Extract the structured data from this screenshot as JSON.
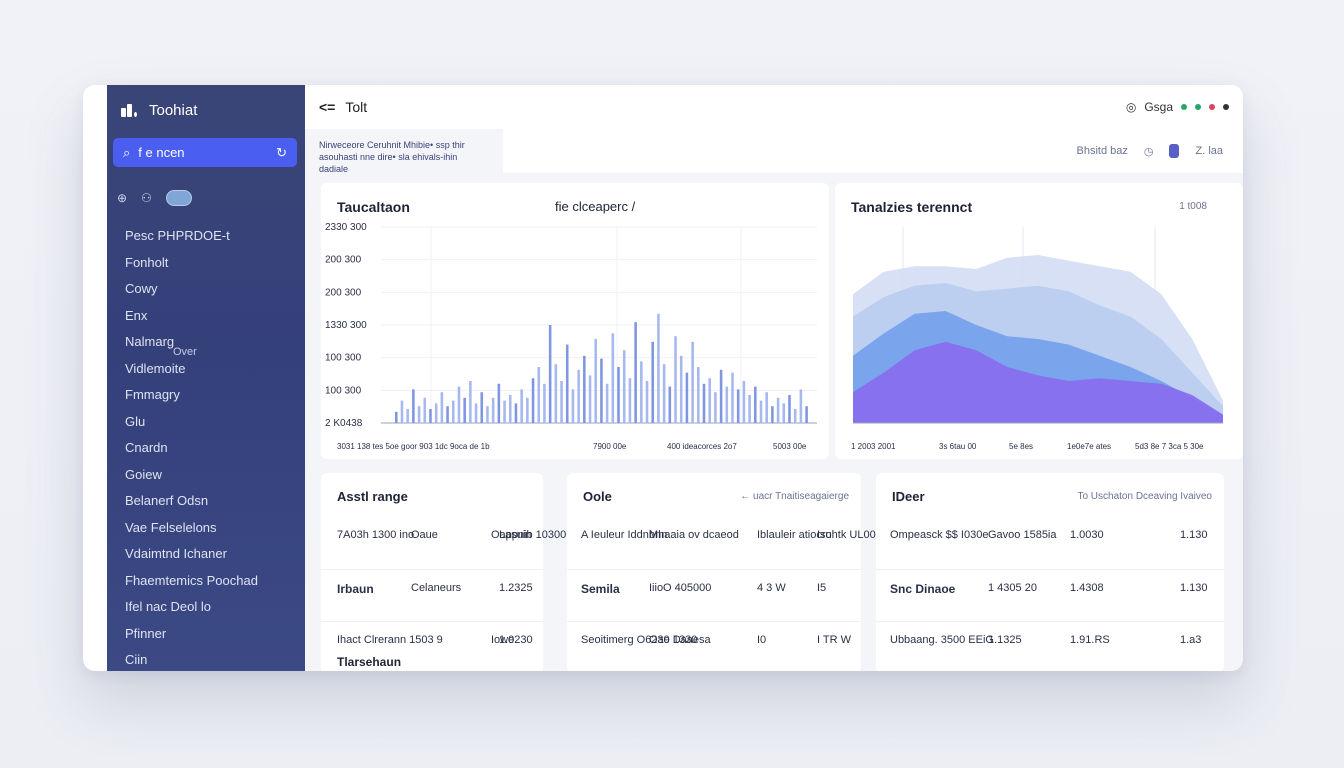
{
  "app": {
    "brand": "Toohiat",
    "search_label": "f e ncen",
    "side_icons": [
      "⊕",
      "⚇"
    ],
    "nav_items": [
      {
        "label": "Pesc PHPRDOE-t",
        "sub": ""
      },
      {
        "label": "Fonholt",
        "sub": ""
      },
      {
        "label": "Cowy",
        "sub": ""
      },
      {
        "label": "Enx",
        "sub": ""
      },
      {
        "label": "Nalmarg",
        "sub": "Over"
      },
      {
        "label": "Vidlemoite",
        "sub": ""
      },
      {
        "label": "Fmmagry",
        "sub": ""
      },
      {
        "label": "Glu",
        "sub": ""
      },
      {
        "label": "Cnardn",
        "sub": ""
      },
      {
        "label": "Goiew",
        "sub": ""
      },
      {
        "label": "Belanerf Odsn",
        "sub": ""
      },
      {
        "label": "Vae Felselelons",
        "sub": ""
      },
      {
        "label": "Vdaimtnd Ichaner",
        "sub": ""
      },
      {
        "label": "Fhaemtemics Poochad",
        "sub": ""
      },
      {
        "label": "Ifel nac Deol lo",
        "sub": ""
      },
      {
        "label": "Pfinner",
        "sub": ""
      },
      {
        "label": "Ciin",
        "sub": ""
      }
    ]
  },
  "topbar": {
    "back": "<=",
    "title": "Tolt",
    "right_label": "Gsga"
  },
  "subbar": {
    "breadcrumb": "Nirweceore Ceruhnit Mhibie• ssp thir asouhasti nne dire• sla ehivals-ihin dadiale",
    "panel_label": "Bhsitd baz",
    "panel_value": "Z. laa"
  },
  "colors": {
    "accent": "#4a5ff0",
    "sidebar": "#37427a",
    "bars": "#8fa6e6",
    "area_light": "#c6d4f0",
    "area_blue": "#5f95ea",
    "area_purple": "#8c6cf0"
  },
  "chart1": {
    "title": "Taucaltaon",
    "subtitle": "fie clceaperc /",
    "y_ticks": [
      "2330 300",
      "200 300",
      "200 300",
      "1330 300",
      "100 300",
      "100 300",
      "2 K0438"
    ],
    "x_ticks": [
      "3031 138 tes 5oe goor 903 1dc 9oca de 1b",
      "7900 00e",
      "400 ideacorces 2o7",
      "5003 00e"
    ]
  },
  "chart2": {
    "title": "Tanalzies terennct",
    "corner": "1 t008",
    "x_ticks": [
      "1 2003 2001",
      "3s 6tau 00",
      "5e 8es",
      "1e0e7e ates",
      "5d3 8e 7 3ca 5 30e"
    ]
  },
  "chart_data": [
    {
      "type": "bar",
      "title": "Taucaltaon",
      "y_ticks": [
        "2330 300",
        "200 300",
        "200 300",
        "1330 300",
        "100 300",
        "100 300",
        "2 K0438"
      ],
      "values": [
        0.4,
        0.8,
        0.5,
        1.2,
        0.6,
        0.9,
        0.5,
        0.7,
        1.1,
        0.6,
        0.8,
        1.3,
        0.9,
        1.5,
        0.7,
        1.1,
        0.6,
        0.9,
        1.4,
        0.8,
        1.0,
        0.7,
        1.2,
        0.9,
        1.6,
        2.0,
        1.4,
        3.5,
        2.1,
        1.5,
        2.8,
        1.2,
        1.9,
        2.4,
        1.7,
        3.0,
        2.3,
        1.4,
        3.2,
        2.0,
        2.6,
        1.6,
        3.6,
        2.2,
        1.5,
        2.9,
        3.9,
        2.1,
        1.3,
        3.1,
        2.4,
        1.8,
        2.9,
        2.0,
        1.4,
        1.6,
        1.1,
        1.9,
        1.3,
        1.8,
        1.2,
        1.5,
        1.0,
        1.3,
        0.8,
        1.1,
        0.6,
        0.9,
        0.7,
        1.0,
        0.5,
        1.2,
        0.6
      ],
      "ylim": [
        0,
        7
      ]
    },
    {
      "type": "area",
      "title": "Tanalzies terennct",
      "x": [
        0,
        1,
        2,
        3,
        4,
        5,
        6,
        7,
        8,
        9,
        10,
        11,
        12
      ],
      "series": [
        {
          "values": [
            4.6,
            5.4,
            5.6,
            5.6,
            5.5,
            5.9,
            6.0,
            5.8,
            5.6,
            5.4,
            4.6,
            3.0,
            0.8
          ]
        },
        {
          "values": [
            3.8,
            4.5,
            4.9,
            5.0,
            4.7,
            4.8,
            4.9,
            4.7,
            4.2,
            3.8,
            3.0,
            1.8,
            0.6
          ]
        },
        {
          "values": [
            2.4,
            3.2,
            3.9,
            4.0,
            3.5,
            3.1,
            3.0,
            2.8,
            2.4,
            2.0,
            1.5,
            0.9,
            0.3
          ]
        },
        {
          "values": [
            1.1,
            1.8,
            2.6,
            2.9,
            2.6,
            2.0,
            1.7,
            1.5,
            1.6,
            1.5,
            1.4,
            1.0,
            0.3
          ]
        }
      ],
      "ylim": [
        0,
        7
      ]
    }
  ],
  "tables": [
    {
      "title": "Asstl range",
      "header_note": "",
      "rows": [
        [
          "7A03h 1300 ino",
          "Oaue",
          "Oappnib 10300",
          "Lasuin"
        ],
        [
          "Irbaun",
          "Celaneurs",
          "",
          "1.2325"
        ],
        [
          "Ihact Clrerann 1503 9",
          "",
          "Iowe",
          "1.0230"
        ]
      ],
      "footer": "Tlarsehaun"
    },
    {
      "title": "Oole",
      "header_note": "← uacr Tnaitiseagaierge",
      "rows": [
        [
          "A Ieuleur Iddnbnn",
          "Mhaaia ov dcaeod",
          "Iblauleir atiocro",
          "Isuhtk UL00"
        ],
        [
          "Semila",
          "IiioO 405000",
          "4 3 W",
          "I5"
        ],
        [
          "Seoitimerg O6230 Daaesa",
          "Oae 1330",
          "I0",
          "I TR W"
        ]
      ],
      "footer": ""
    },
    {
      "title": "IDeer",
      "header_note": "To Uschaton Dceaving Ivaiveo",
      "rows": [
        [
          "Ompeasck $$ I030e",
          "Gavoo 1585ia",
          "1.0030",
          "1.130"
        ],
        [
          "Snc Dinaoe",
          "1 4305 20",
          "1.4308",
          "1.130"
        ],
        [
          "Ubbaang. 3500 EEiG",
          "1.1325",
          "1.91.RS",
          "1.a3"
        ]
      ],
      "footer": ""
    }
  ]
}
